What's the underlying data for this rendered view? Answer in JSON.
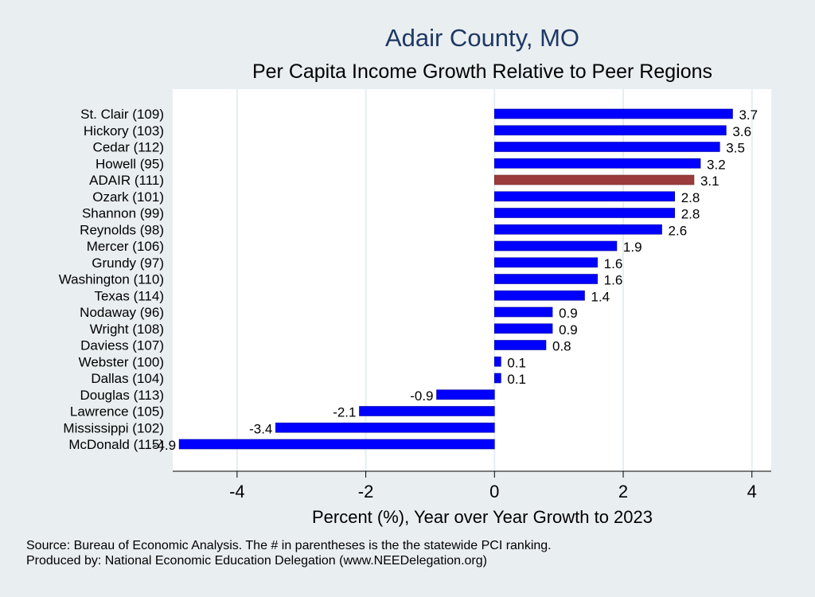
{
  "title": "Adair County, MO",
  "subtitle": "Per Capita Income Growth Relative to Peer Regions",
  "footnote_source": "Source: Bureau of Economic Analysis. The # in parentheses is the the statewide PCI ranking.",
  "footnote_producer": "Produced by: National Economic Education Delegation (www.NEEDelegation.org)",
  "colors": {
    "background": "#e9eef1",
    "plot_bg": "#ffffff",
    "bar": "#0000ff",
    "highlight": "#9b3b3b",
    "title": "#1f3864",
    "grid": "#e6eef2"
  },
  "chart_data": {
    "type": "bar",
    "orientation": "horizontal",
    "title": "Adair County, MO",
    "subtitle": "Per Capita Income Growth Relative to Peer Regions",
    "xlabel": "Percent (%), Year over Year Growth to 2023",
    "ylabel": "",
    "xlim": [
      -5,
      4.3
    ],
    "xticks": [
      -4,
      -2,
      0,
      2,
      4
    ],
    "grid": true,
    "highlight_category": "ADAIR (111)",
    "categories": [
      "St. Clair (109)",
      "Hickory (103)",
      "Cedar (112)",
      "Howell (95)",
      "ADAIR (111)",
      "Ozark (101)",
      "Shannon (99)",
      "Reynolds (98)",
      "Mercer (106)",
      "Grundy (97)",
      "Washington (110)",
      "Texas (114)",
      "Nodaway (96)",
      "Wright (108)",
      "Daviess (107)",
      "Webster (100)",
      "Dallas (104)",
      "Douglas (113)",
      "Lawrence (105)",
      "Mississippi (102)",
      "McDonald (115)"
    ],
    "values": [
      3.7,
      3.6,
      3.5,
      3.2,
      3.1,
      2.8,
      2.8,
      2.6,
      1.9,
      1.6,
      1.6,
      1.4,
      0.9,
      0.9,
      0.8,
      0.1,
      0.1,
      -0.9,
      -2.1,
      -3.4,
      -4.9
    ],
    "value_labels": [
      "3.7",
      "3.6",
      "3.5",
      "3.2",
      "3.1",
      "2.8",
      "2.8",
      "2.6",
      "1.9",
      "1.6",
      "1.6",
      "1.4",
      "0.9",
      "0.9",
      "0.8",
      "0.1",
      "0.1",
      "-0.9",
      "-2.1",
      "-3.4",
      "-4.9"
    ]
  }
}
